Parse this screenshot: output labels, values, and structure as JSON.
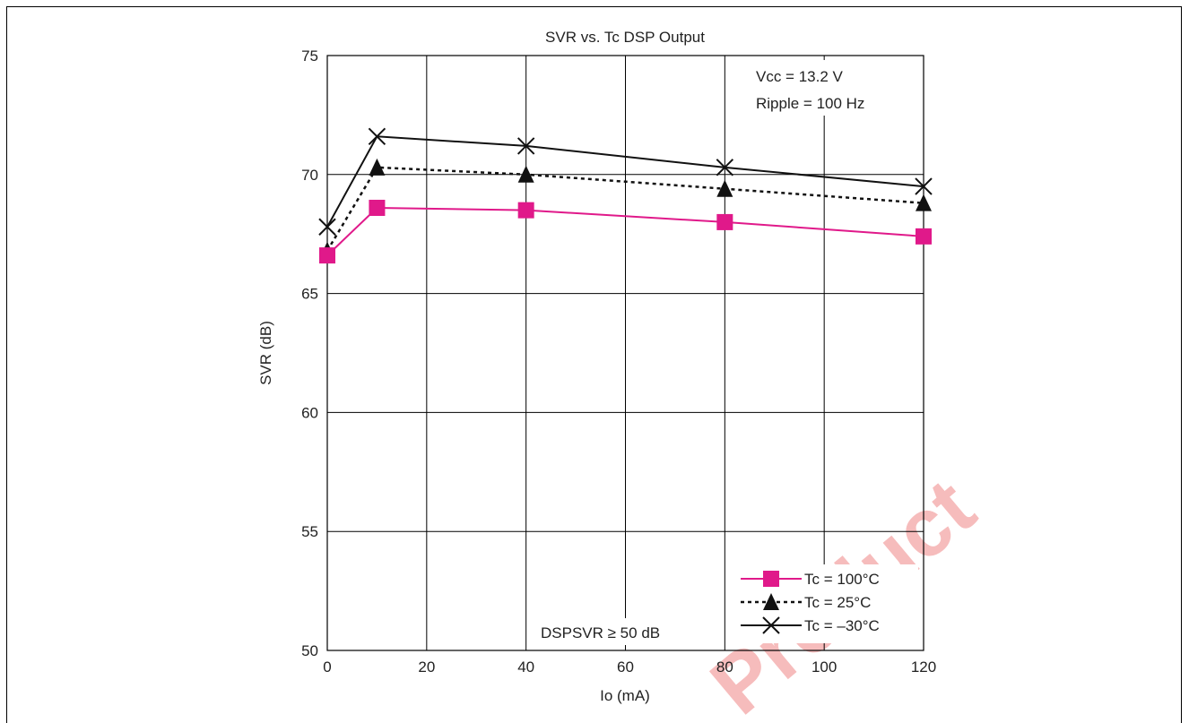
{
  "chart_data": {
    "type": "line",
    "title": "SVR vs. Tc  DSP Output",
    "xlabel": "Io   (mA)",
    "ylabel": "SVR   (dB)",
    "xlim": [
      0,
      120
    ],
    "ylim": [
      50,
      75
    ],
    "xticks": [
      0,
      20,
      40,
      60,
      80,
      100,
      120
    ],
    "yticks": [
      50,
      55,
      60,
      65,
      70,
      75
    ],
    "grid": true,
    "legend_position": "bottom-right",
    "annotations": [
      "Vcc = 13.2 V",
      "Ripple = 100 Hz",
      "DSPSVR ≥ 50 dB"
    ],
    "watermark": "Product",
    "series": [
      {
        "name": "Tc = 100°C",
        "color": "#e0198a",
        "marker": "square",
        "dash": "solid",
        "x": [
          0,
          10,
          40,
          80,
          120
        ],
        "y": [
          66.6,
          68.6,
          68.5,
          68.0,
          67.4
        ]
      },
      {
        "name": "Tc = 25°C",
        "color": "#111111",
        "marker": "triangle",
        "dash": "dotted",
        "x": [
          0,
          10,
          40,
          80,
          120
        ],
        "y": [
          66.8,
          70.3,
          70.0,
          69.4,
          68.8
        ]
      },
      {
        "name": "Tc = –30°C",
        "color": "#111111",
        "marker": "x",
        "dash": "solid",
        "x": [
          0,
          10,
          40,
          80,
          120
        ],
        "y": [
          67.8,
          71.6,
          71.2,
          70.3,
          69.5
        ]
      }
    ]
  }
}
